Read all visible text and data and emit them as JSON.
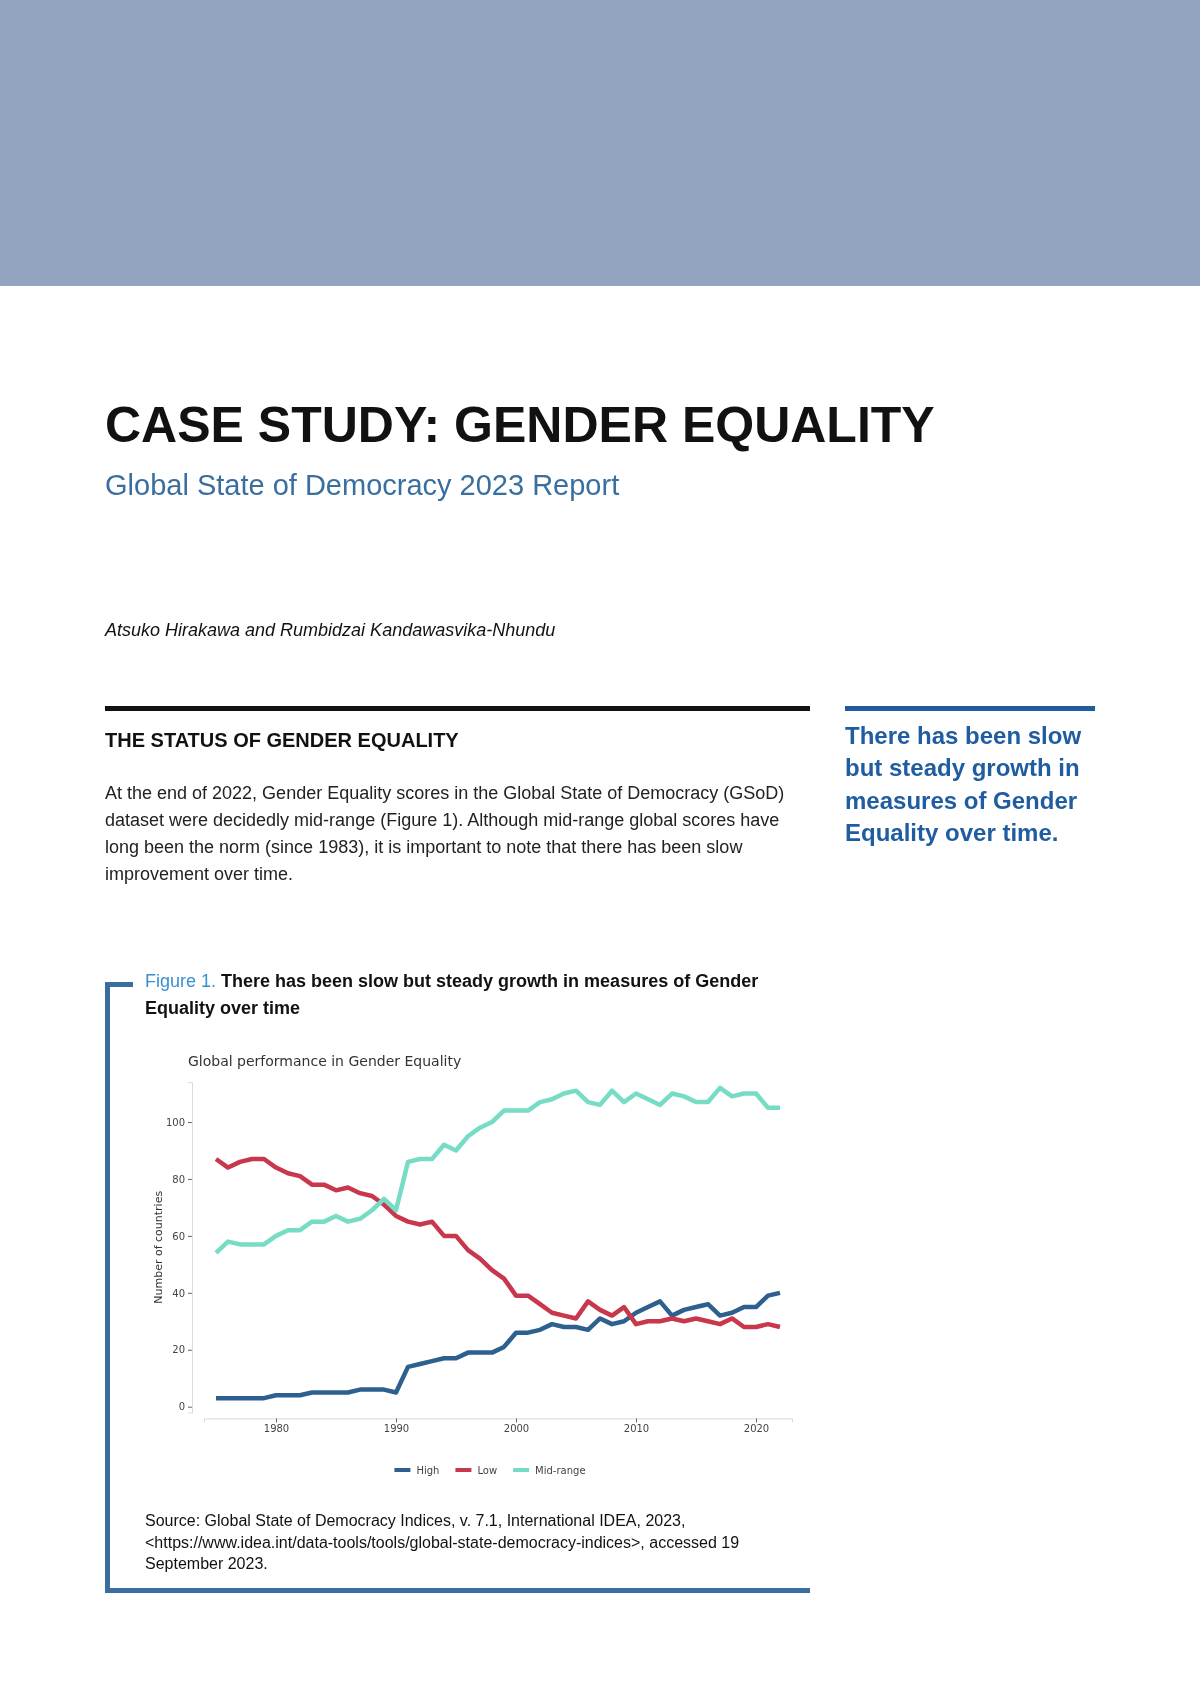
{
  "chart_data": {
    "type": "line",
    "title": "Figure 1. There has been slow but steady growth in measures of Gender Equality over time",
    "subtitle": "Global performance in Gender Equality",
    "ylabel": "Number of countries",
    "x": [
      1975,
      1976,
      1977,
      1978,
      1979,
      1980,
      1981,
      1982,
      1983,
      1984,
      1985,
      1986,
      1987,
      1988,
      1989,
      1990,
      1991,
      1992,
      1993,
      1994,
      1995,
      1996,
      1997,
      1998,
      1999,
      2000,
      2001,
      2002,
      2003,
      2004,
      2005,
      2006,
      2007,
      2008,
      2009,
      2010,
      2011,
      2012,
      2013,
      2014,
      2015,
      2016,
      2017,
      2018,
      2019,
      2020,
      2021,
      2022
    ],
    "series": [
      {
        "name": "High",
        "color": "#2d5f8f",
        "values": [
          3,
          3,
          3,
          3,
          3,
          4,
          4,
          4,
          5,
          5,
          5,
          5,
          6,
          6,
          6,
          5,
          14,
          15,
          16,
          17,
          17,
          19,
          19,
          19,
          21,
          26,
          26,
          27,
          29,
          28,
          28,
          27,
          31,
          29,
          30,
          33,
          35,
          37,
          32,
          34,
          35,
          36,
          32,
          33,
          35,
          35,
          39,
          40
        ]
      },
      {
        "name": "Low",
        "color": "#c8374c",
        "values": [
          87,
          84,
          86,
          87,
          87,
          84,
          82,
          81,
          78,
          78,
          76,
          77,
          75,
          74,
          71,
          67,
          65,
          64,
          65,
          60,
          60,
          55,
          52,
          48,
          45,
          39,
          39,
          36,
          33,
          32,
          31,
          37,
          34,
          32,
          35,
          29,
          30,
          30,
          31,
          30,
          31,
          30,
          29,
          31,
          28,
          28,
          29,
          28
        ]
      },
      {
        "name": "Mid-range",
        "color": "#76dcc6",
        "values": [
          54,
          58,
          57,
          57,
          57,
          60,
          62,
          62,
          65,
          65,
          67,
          65,
          66,
          69,
          73,
          69,
          86,
          87,
          87,
          92,
          90,
          95,
          98,
          100,
          104,
          104,
          104,
          107,
          108,
          110,
          111,
          107,
          106,
          111,
          107,
          110,
          108,
          106,
          110,
          109,
          107,
          107,
          112,
          109,
          110,
          110,
          105,
          105
        ]
      }
    ],
    "xlim": [
      1974,
      2023
    ],
    "xticks": [
      1980,
      1990,
      2000,
      2010,
      2020
    ],
    "ylim": [
      -2,
      114
    ],
    "yticks": [
      0,
      20,
      40,
      60,
      80,
      100
    ],
    "grid": false,
    "legend": "bottom",
    "annotations": [
      "CASE STUDY: GENDER EQUALITY",
      "Global State of Democracy 2023 Report",
      "Atsuko Hirakawa and Rumbidzai Kandawasvika-Nhundu",
      "THE STATUS OF GENDER EQUALITY",
      "At the end of 2022, Gender Equality scores in the Global State of Democracy (GSoD) dataset were decidedly mid-range (Figure 1). Although mid-range global scores have long been the norm (since 1983), it is important to note that there has been slow improvement over time.",
      "There has been slow but steady growth in measures of Gender Equality over time.",
      "Source: Global State of Democracy Indices, v. 7.1, International IDEA, 2023, <https://www.idea.int/data-tools/tools/global-state-democracy-indices>, accessed 19 September 2023."
    ]
  }
}
